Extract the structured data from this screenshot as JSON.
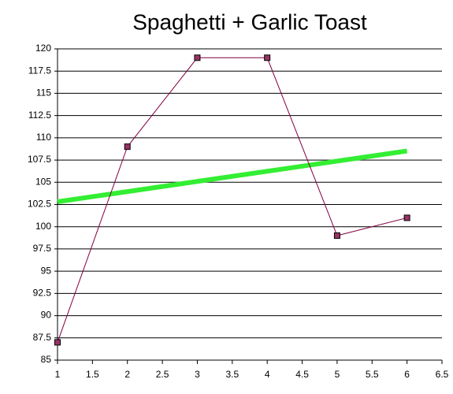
{
  "chart_data": {
    "type": "line",
    "title": "Spaghetti + Garlic Toast",
    "x": [
      1,
      2,
      3,
      4,
      5,
      6
    ],
    "series": [
      {
        "color": "#800040",
        "marker_color": "#993366",
        "values": [
          87,
          109,
          119,
          119,
          99,
          101
        ]
      }
    ],
    "trendline": {
      "color": "#33ee33",
      "x": [
        1,
        6
      ],
      "values": [
        102.81,
        108.52
      ]
    },
    "xlim": [
      1,
      6.5
    ],
    "xticks": [
      1,
      1.5,
      2,
      2.5,
      3,
      3.5,
      4,
      4.5,
      5,
      5.5,
      6,
      6.5
    ],
    "ylim": [
      85,
      120
    ],
    "yticks": [
      85,
      87.5,
      90,
      92.5,
      95,
      97.5,
      100,
      102.5,
      105,
      107.5,
      110,
      112.5,
      115,
      117.5,
      120
    ],
    "grid": true
  }
}
